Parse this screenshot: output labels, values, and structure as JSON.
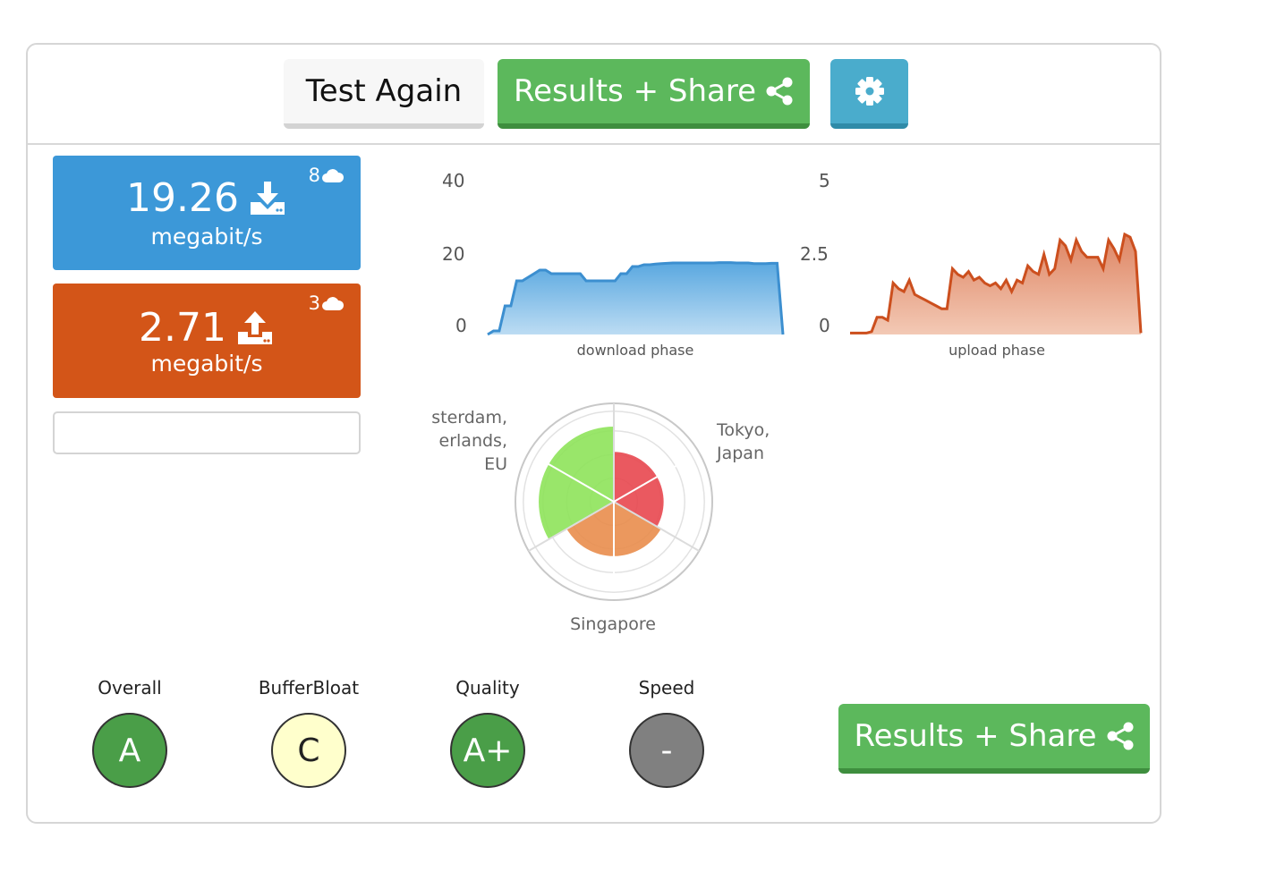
{
  "toolbar": {
    "test_again_label": "Test Again",
    "results_share_label": "Results + Share",
    "colors": {
      "share": "#5cb85c",
      "gear": "#4aaccc"
    }
  },
  "download": {
    "value": "19.26",
    "unit": "megabit/s",
    "servers": "8",
    "color": "#3c98d8"
  },
  "upload": {
    "value": "2.71",
    "unit": "megabit/s",
    "servers": "3",
    "color": "#d35518"
  },
  "download_chart": {
    "type": "area",
    "xlabel": "download phase",
    "y_ticks": [
      "40",
      "20",
      "0"
    ],
    "ylim": [
      0,
      40
    ],
    "values": [
      0,
      1,
      1,
      8,
      8,
      15,
      15,
      16,
      17,
      18,
      18,
      17,
      17,
      17,
      17,
      17,
      17,
      15,
      15,
      15,
      15,
      15,
      15,
      17,
      17,
      19,
      19,
      19.5,
      19.5,
      19.7,
      19.8,
      19.9,
      20,
      20,
      20,
      20,
      20,
      20,
      20,
      20,
      20.1,
      20.1,
      20.1,
      20,
      20,
      20,
      19.8,
      19.8,
      19.8,
      19.9,
      19.9,
      0
    ]
  },
  "upload_chart": {
    "type": "area",
    "xlabel": "upload phase",
    "y_ticks": [
      "5",
      "2.5",
      "0"
    ],
    "ylim": [
      0,
      5
    ],
    "values": [
      0.05,
      0.05,
      0.05,
      0.05,
      0.1,
      0.6,
      0.6,
      0.5,
      1.8,
      1.6,
      1.5,
      1.9,
      1.4,
      1.3,
      1.2,
      1.1,
      1.0,
      0.9,
      0.9,
      2.3,
      2.1,
      2.0,
      2.2,
      1.9,
      2.0,
      1.8,
      1.7,
      1.8,
      1.6,
      1.9,
      1.5,
      1.9,
      1.8,
      2.4,
      2.2,
      2.1,
      2.8,
      2.1,
      2.3,
      3.3,
      3.1,
      2.6,
      3.3,
      2.9,
      2.7,
      2.7,
      2.7,
      2.3,
      3.3,
      3.0,
      2.6,
      3.5,
      3.4,
      2.9,
      0.05
    ]
  },
  "map": {
    "cities": {
      "left": [
        "sterdam,",
        "erlands,",
        "EU"
      ],
      "right": [
        "Tokyo,",
        "Japan"
      ],
      "bottom": "Singapore"
    },
    "sectors": [
      {
        "region": "Tokyo, Japan",
        "level": 0.55,
        "color": "#e8474f"
      },
      {
        "region": "Singapore",
        "level": 0.6,
        "color": "#e98d4d"
      },
      {
        "region": "Amsterdam, Netherlands, EU",
        "level": 0.83,
        "color": "#8ee35a"
      }
    ]
  },
  "grades": [
    {
      "label": "Overall",
      "grade": "A",
      "bg": "#4a9e48",
      "fg": "#ffffff"
    },
    {
      "label": "BufferBloat",
      "grade": "C",
      "bg": "#ffffcc",
      "fg": "#222222"
    },
    {
      "label": "Quality",
      "grade": "A+",
      "bg": "#4a9e48",
      "fg": "#ffffff"
    },
    {
      "label": "Speed",
      "grade": "-",
      "bg": "#808080",
      "fg": "#ffffff"
    }
  ]
}
